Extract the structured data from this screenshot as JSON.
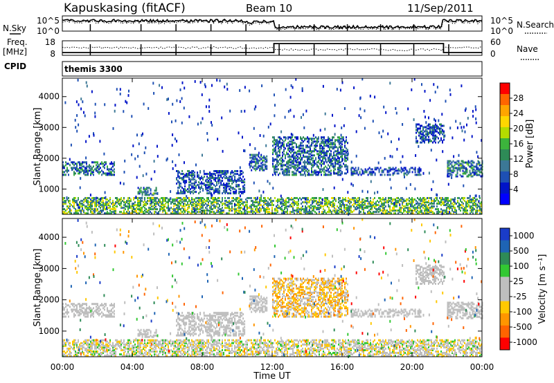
{
  "header": {
    "station": "Kapuskasing (fitACF)",
    "beam": "Beam 10",
    "date": "11/Sep/2011",
    "cpid_label": "CPID",
    "cpid_value": "themis 3300"
  },
  "noise_panel": {
    "left_label": "N.Sky",
    "right_label": "N.Search",
    "left_ticks": [
      "10^5",
      "10^0"
    ],
    "right_ticks": [
      "10^5",
      "10^0"
    ]
  },
  "freq_panel": {
    "left_label_1": "Freq.",
    "left_label_2": "[MHz]",
    "right_label": "Nave",
    "left_ticks": [
      "18",
      "8"
    ],
    "right_ticks": [
      "60",
      "0"
    ]
  },
  "power_colorbar": {
    "label": "Power [dB]",
    "ticks": [
      "28",
      "24",
      "20",
      "16",
      "12",
      "8",
      "4"
    ],
    "colors": [
      "#ff0000",
      "#ff6600",
      "#ffa500",
      "#ffd700",
      "#b4dc00",
      "#3cb43c",
      "#2e8b57",
      "#3c7896",
      "#1e50b4",
      "#0014c8",
      "#0000ff"
    ]
  },
  "velocity_colorbar": {
    "label": "Velocity [m s⁻¹]",
    "ticks": [
      "1000",
      "500",
      "100",
      "25",
      "-25",
      "-100",
      "-500",
      "-1000"
    ],
    "colors": [
      "#1a3cc8",
      "#1e64b4",
      "#2e8b57",
      "#32c832",
      "#bebebe",
      "#bebebe",
      "#ffc800",
      "#ff9600",
      "#ff6400",
      "#ff0000"
    ]
  },
  "axes": {
    "ylabel": "Slant Range [km]",
    "yticks": [
      "4000",
      "3000",
      "2000",
      "1000"
    ],
    "xlabel": "Time UT",
    "xticks": [
      "00:00",
      "04:00",
      "08:00",
      "12:00",
      "16:00",
      "20:00",
      "00:00"
    ]
  },
  "chart_data": [
    {
      "type": "heatmap",
      "title": "",
      "xlabel": "",
      "ylabel": "Slant Range [km]",
      "xlim": [
        0,
        24
      ],
      "ylim": [
        180,
        4600
      ],
      "colorbar_label": "Power [dB]",
      "clim": [
        0,
        30
      ],
      "features": [
        {
          "t_start": 0.0,
          "t_end": 24.0,
          "range_km": [
            200,
            700
          ],
          "value_db": 14
        },
        {
          "t_start": 0.0,
          "t_end": 3.0,
          "range_km": [
            1450,
            1900
          ],
          "value_db": 8
        },
        {
          "t_start": 4.3,
          "t_end": 5.4,
          "range_km": [
            800,
            1050
          ],
          "value_db": 10
        },
        {
          "t_start": 6.5,
          "t_end": 10.4,
          "range_km": [
            850,
            1600
          ],
          "value_db": 6
        },
        {
          "t_start": 10.7,
          "t_end": 11.7,
          "range_km": [
            1600,
            2100
          ],
          "value_db": 8
        },
        {
          "t_start": 12.0,
          "t_end": 16.3,
          "range_km": [
            1450,
            2700
          ],
          "value_db": 8
        },
        {
          "t_start": 16.5,
          "t_end": 20.5,
          "range_km": [
            1450,
            1700
          ],
          "value_db": 6
        },
        {
          "t_start": 20.2,
          "t_end": 21.8,
          "range_km": [
            2500,
            3100
          ],
          "value_db": 6
        },
        {
          "t_start": 22.0,
          "t_end": 24.0,
          "range_km": [
            1400,
            1900
          ],
          "value_db": 10
        }
      ]
    },
    {
      "type": "heatmap",
      "title": "",
      "xlabel": "Time UT",
      "ylabel": "Slant Range [km]",
      "xlim": [
        0,
        24
      ],
      "ylim": [
        180,
        4600
      ],
      "colorbar_label": "Velocity [m s⁻¹]",
      "clim": [
        -1000,
        1000
      ],
      "features": [
        {
          "t_start": 0.0,
          "t_end": 24.0,
          "range_km": [
            200,
            700
          ],
          "value_ms": -50
        },
        {
          "t_start": 0.0,
          "t_end": 3.0,
          "range_km": [
            1450,
            1900
          ],
          "value_ms": 0
        },
        {
          "t_start": 4.3,
          "t_end": 5.4,
          "range_km": [
            800,
            1050
          ],
          "value_ms": 0
        },
        {
          "t_start": 6.5,
          "t_end": 10.4,
          "range_km": [
            850,
            1600
          ],
          "value_ms": 0
        },
        {
          "t_start": 10.7,
          "t_end": 11.7,
          "range_km": [
            1600,
            2100
          ],
          "value_ms": 0
        },
        {
          "t_start": 12.0,
          "t_end": 16.3,
          "range_km": [
            1450,
            2700
          ],
          "value_ms": -300
        },
        {
          "t_start": 16.5,
          "t_end": 20.5,
          "range_km": [
            1450,
            1700
          ],
          "value_ms": 0
        },
        {
          "t_start": 20.2,
          "t_end": 21.8,
          "range_km": [
            2500,
            3100
          ],
          "value_ms": 0
        },
        {
          "t_start": 22.0,
          "t_end": 24.0,
          "range_km": [
            1400,
            1900
          ],
          "value_ms": 0
        }
      ]
    }
  ]
}
